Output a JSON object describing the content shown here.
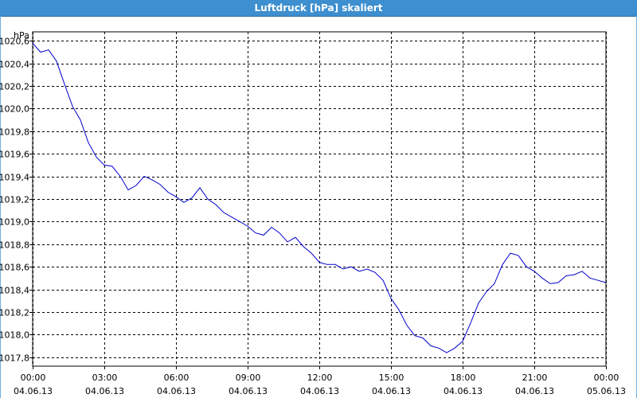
{
  "window": {
    "title": "Luftdruck [hPa] skaliert"
  },
  "colors": {
    "titlebar": "#3d8fcf",
    "line": "#0000cc",
    "grid": "#000000"
  },
  "chart_data": {
    "type": "line",
    "title": "Luftdruck [hPa] skaliert",
    "ylabel": "hPa",
    "xlabel": "",
    "ylim": [
      1017.72,
      1020.68
    ],
    "xlim": [
      0,
      24
    ],
    "grid": true,
    "y_ticks": [
      {
        "value": 1017.8,
        "label": "1017,8"
      },
      {
        "value": 1018.0,
        "label": "1018,0"
      },
      {
        "value": 1018.2,
        "label": "1018,2"
      },
      {
        "value": 1018.4,
        "label": "1018,4"
      },
      {
        "value": 1018.6,
        "label": "1018,6"
      },
      {
        "value": 1018.8,
        "label": "1018,8"
      },
      {
        "value": 1019.0,
        "label": "1019,0"
      },
      {
        "value": 1019.2,
        "label": "1019,2"
      },
      {
        "value": 1019.4,
        "label": "1019,4"
      },
      {
        "value": 1019.6,
        "label": "1019,6"
      },
      {
        "value": 1019.8,
        "label": "1019,8"
      },
      {
        "value": 1020.0,
        "label": "1020,0"
      },
      {
        "value": 1020.2,
        "label": "1020,2"
      },
      {
        "value": 1020.4,
        "label": "1020,4"
      },
      {
        "value": 1020.6,
        "label": "1020,6"
      }
    ],
    "x_ticks": [
      {
        "hour": 0,
        "time": "00:00",
        "date": "04.06.13"
      },
      {
        "hour": 3,
        "time": "03:00",
        "date": "04.06.13"
      },
      {
        "hour": 6,
        "time": "06:00",
        "date": "04.06.13"
      },
      {
        "hour": 9,
        "time": "09:00",
        "date": "04.06.13"
      },
      {
        "hour": 12,
        "time": "12:00",
        "date": "04.06.13"
      },
      {
        "hour": 15,
        "time": "15:00",
        "date": "04.06.13"
      },
      {
        "hour": 18,
        "time": "18:00",
        "date": "04.06.13"
      },
      {
        "hour": 21,
        "time": "21:00",
        "date": "04.06.13"
      },
      {
        "hour": 24,
        "time": "00:00",
        "date": "05.06.13"
      }
    ],
    "series": [
      {
        "x": [
          0.0,
          0.33,
          0.67,
          1.0,
          1.33,
          1.67,
          2.0,
          2.33,
          2.67,
          3.0,
          3.33,
          3.67,
          4.0,
          4.33,
          4.67,
          5.0,
          5.33,
          5.67,
          6.0,
          6.33,
          6.67,
          7.0,
          7.33,
          7.67,
          8.0,
          8.33,
          8.67,
          9.0,
          9.33,
          9.67,
          10.0,
          10.33,
          10.67,
          11.0,
          11.33,
          11.67,
          12.0,
          12.33,
          12.67,
          13.0,
          13.33,
          13.67,
          14.0,
          14.33,
          14.67,
          15.0,
          15.33,
          15.67,
          16.0,
          16.33,
          16.67,
          17.0,
          17.33,
          17.67,
          18.0,
          18.33,
          18.67,
          19.0,
          19.33,
          19.67,
          20.0,
          20.33,
          20.67,
          21.0,
          21.33,
          21.67,
          22.0,
          22.33,
          22.67,
          23.0,
          23.33,
          23.67,
          24.0
        ],
        "values": [
          1020.58,
          1020.5,
          1020.52,
          1020.42,
          1020.22,
          1020.02,
          1019.9,
          1019.7,
          1019.57,
          1019.5,
          1019.49,
          1019.4,
          1019.28,
          1019.32,
          1019.4,
          1019.37,
          1019.33,
          1019.26,
          1019.22,
          1019.17,
          1019.21,
          1019.3,
          1019.2,
          1019.15,
          1019.08,
          1019.04,
          1019.0,
          1018.96,
          1018.9,
          1018.88,
          1018.95,
          1018.9,
          1018.82,
          1018.86,
          1018.78,
          1018.72,
          1018.64,
          1018.62,
          1018.62,
          1018.58,
          1018.6,
          1018.56,
          1018.58,
          1018.55,
          1018.48,
          1018.32,
          1018.22,
          1018.08,
          1017.99,
          1017.97,
          1017.9,
          1017.88,
          1017.84,
          1017.88,
          1017.94,
          1018.1,
          1018.28,
          1018.38,
          1018.45,
          1018.62,
          1018.72,
          1018.7,
          1018.6,
          1018.56,
          1018.5,
          1018.45,
          1018.46,
          1018.52,
          1018.53,
          1018.56,
          1018.5,
          1018.48,
          1018.46
        ]
      }
    ]
  }
}
